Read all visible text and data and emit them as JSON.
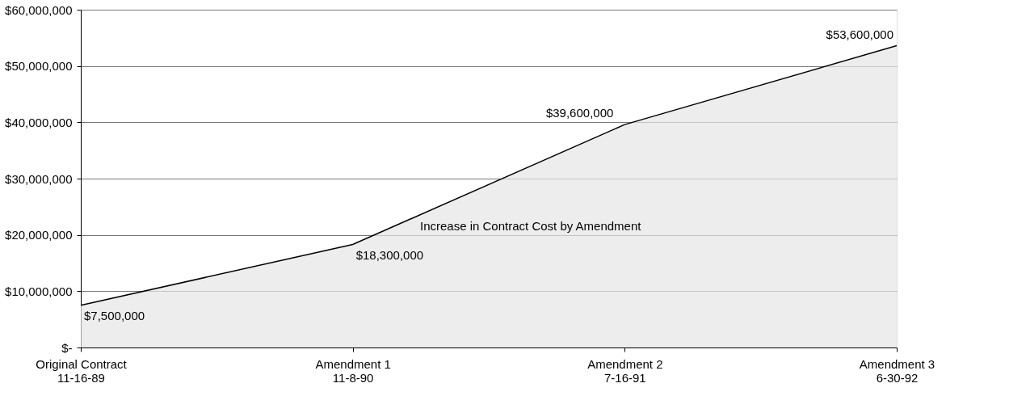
{
  "chart_data": {
    "type": "area",
    "categories": [
      "Original Contract\n11-16-89",
      "Amendment 1\n11-8-90",
      "Amendment 2\n7-16-91",
      "Amendment 3\n6-30-92"
    ],
    "series": [
      {
        "color": "#e6e6e6",
        "values": [
          7500000,
          18300000,
          39600000,
          53600000
        ]
      }
    ],
    "value_labels": [
      "$7,500,000",
      "$18,300,000",
      "$39,600,000",
      "$53,600,000"
    ],
    "ylim": [
      0,
      60000000
    ],
    "yticks": [
      {
        "value": 0,
        "label": "$-"
      },
      {
        "value": 10000000,
        "label": "$10,000,000"
      },
      {
        "value": 20000000,
        "label": "$20,000,000"
      },
      {
        "value": 30000000,
        "label": "$30,000,000"
      },
      {
        "value": 40000000,
        "label": "$40,000,000"
      },
      {
        "value": 50000000,
        "label": "$50,000,000"
      },
      {
        "value": 60000000,
        "label": "$60,000,000"
      }
    ],
    "annotations": [
      "Increase in Contract Cost by Amendment"
    ],
    "grid": "y"
  }
}
